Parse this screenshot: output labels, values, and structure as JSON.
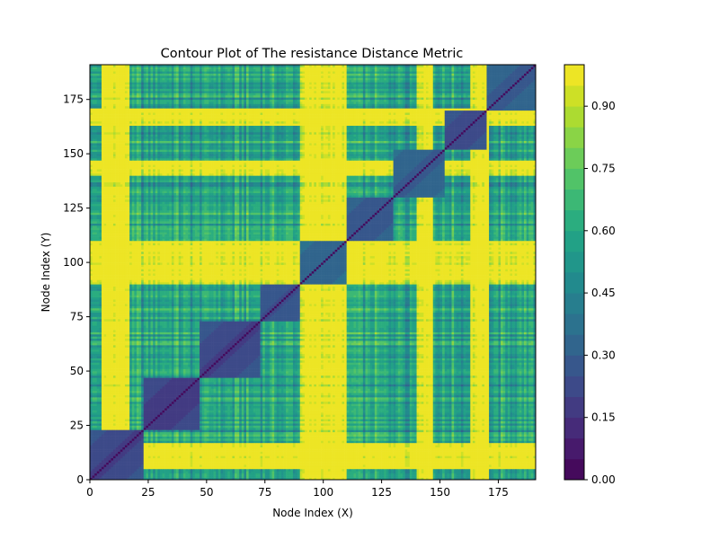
{
  "chart_data": {
    "type": "heatmap",
    "title": "Contour Plot of The resistance Distance Metric",
    "xlabel": "Node Index (X)",
    "ylabel": "Node Index (Y)",
    "n_nodes": 191,
    "xlim": [
      0,
      191
    ],
    "ylim": [
      0,
      191
    ],
    "x_ticks": [
      0,
      25,
      50,
      75,
      100,
      125,
      150,
      175
    ],
    "y_ticks": [
      0,
      25,
      50,
      75,
      100,
      125,
      150,
      175
    ],
    "colormap": "viridis",
    "colorbar": {
      "range": [
        0.0,
        1.0
      ],
      "levels": 20,
      "ticks": [
        "0.00",
        "0.15",
        "0.30",
        "0.45",
        "0.60",
        "0.75",
        "0.90"
      ]
    },
    "structure": {
      "diagonal_value": 0.0,
      "clusters": [
        {
          "range": [
            0,
            23
          ],
          "value": 0.22
        },
        {
          "range": [
            23,
            47
          ],
          "value": 0.18
        },
        {
          "range": [
            47,
            73
          ],
          "value": 0.22
        },
        {
          "range": [
            73,
            90
          ],
          "value": 0.28
        },
        {
          "range": [
            90,
            110
          ],
          "value": 0.35
        },
        {
          "range": [
            110,
            130
          ],
          "value": 0.3
        },
        {
          "range": [
            130,
            152
          ],
          "value": 0.33
        },
        {
          "range": [
            152,
            170
          ],
          "value": 0.25
        },
        {
          "range": [
            170,
            191
          ],
          "value": 0.32
        }
      ],
      "bright_node_ranges": [
        [
          5,
          17
        ],
        [
          90,
          110
        ],
        [
          140,
          147
        ],
        [
          163,
          171
        ]
      ],
      "between_cluster_value": 0.55
    }
  }
}
